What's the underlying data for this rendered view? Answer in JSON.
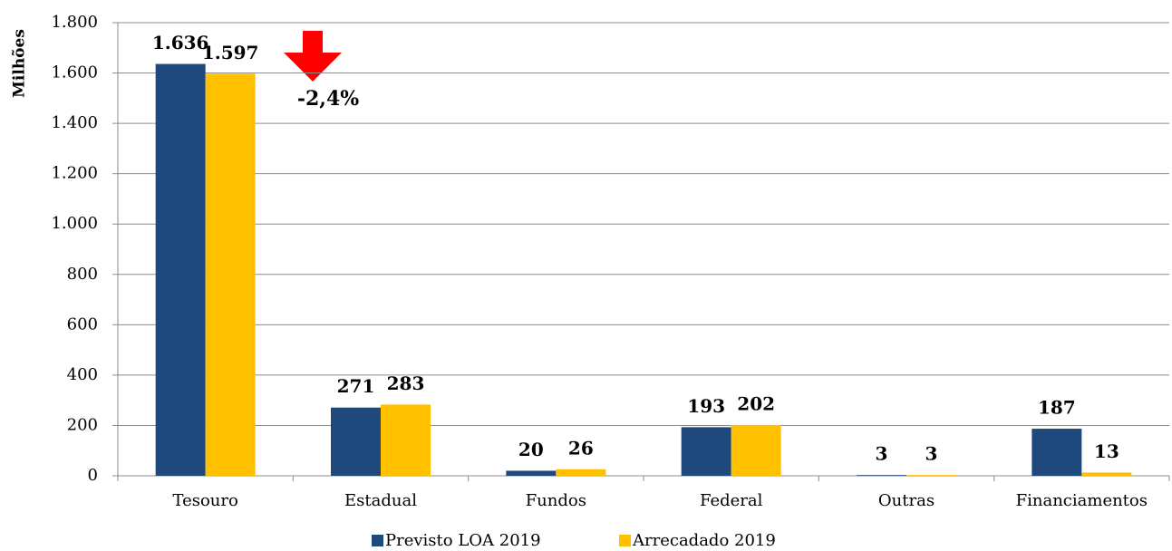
{
  "chart_data": {
    "type": "bar",
    "y_label": "Milhões",
    "categories": [
      "Tesouro",
      "Estadual",
      "Fundos",
      "Federal",
      "Outras",
      "Financiamentos"
    ],
    "series": [
      {
        "name": "Previsto LOA 2019",
        "color": "#1f497d",
        "values": [
          1636,
          271,
          20,
          193,
          3,
          187
        ],
        "value_labels": [
          "1.636",
          "271",
          "20",
          "193",
          "3",
          "187"
        ]
      },
      {
        "name": "Arrecadado 2019",
        "color": "#ffc000",
        "values": [
          1597,
          283,
          26,
          202,
          3,
          13
        ],
        "value_labels": [
          "1.597",
          "283",
          "26",
          "202",
          "3",
          "13"
        ]
      }
    ],
    "ylim": [
      0,
      1800
    ],
    "yticks": [
      0,
      200,
      400,
      600,
      800,
      {
        "value": 1000,
        "label": "1.000"
      },
      {
        "value": 1200,
        "label": "1.200"
      },
      {
        "value": 1400,
        "label": "1.400"
      },
      {
        "value": 1600,
        "label": "1.600"
      },
      {
        "value": 1800,
        "label": "1.800"
      }
    ],
    "grid": true,
    "legend": "bottom",
    "annotation": {
      "text": "-2,4%",
      "color": "#ff0000"
    }
  }
}
